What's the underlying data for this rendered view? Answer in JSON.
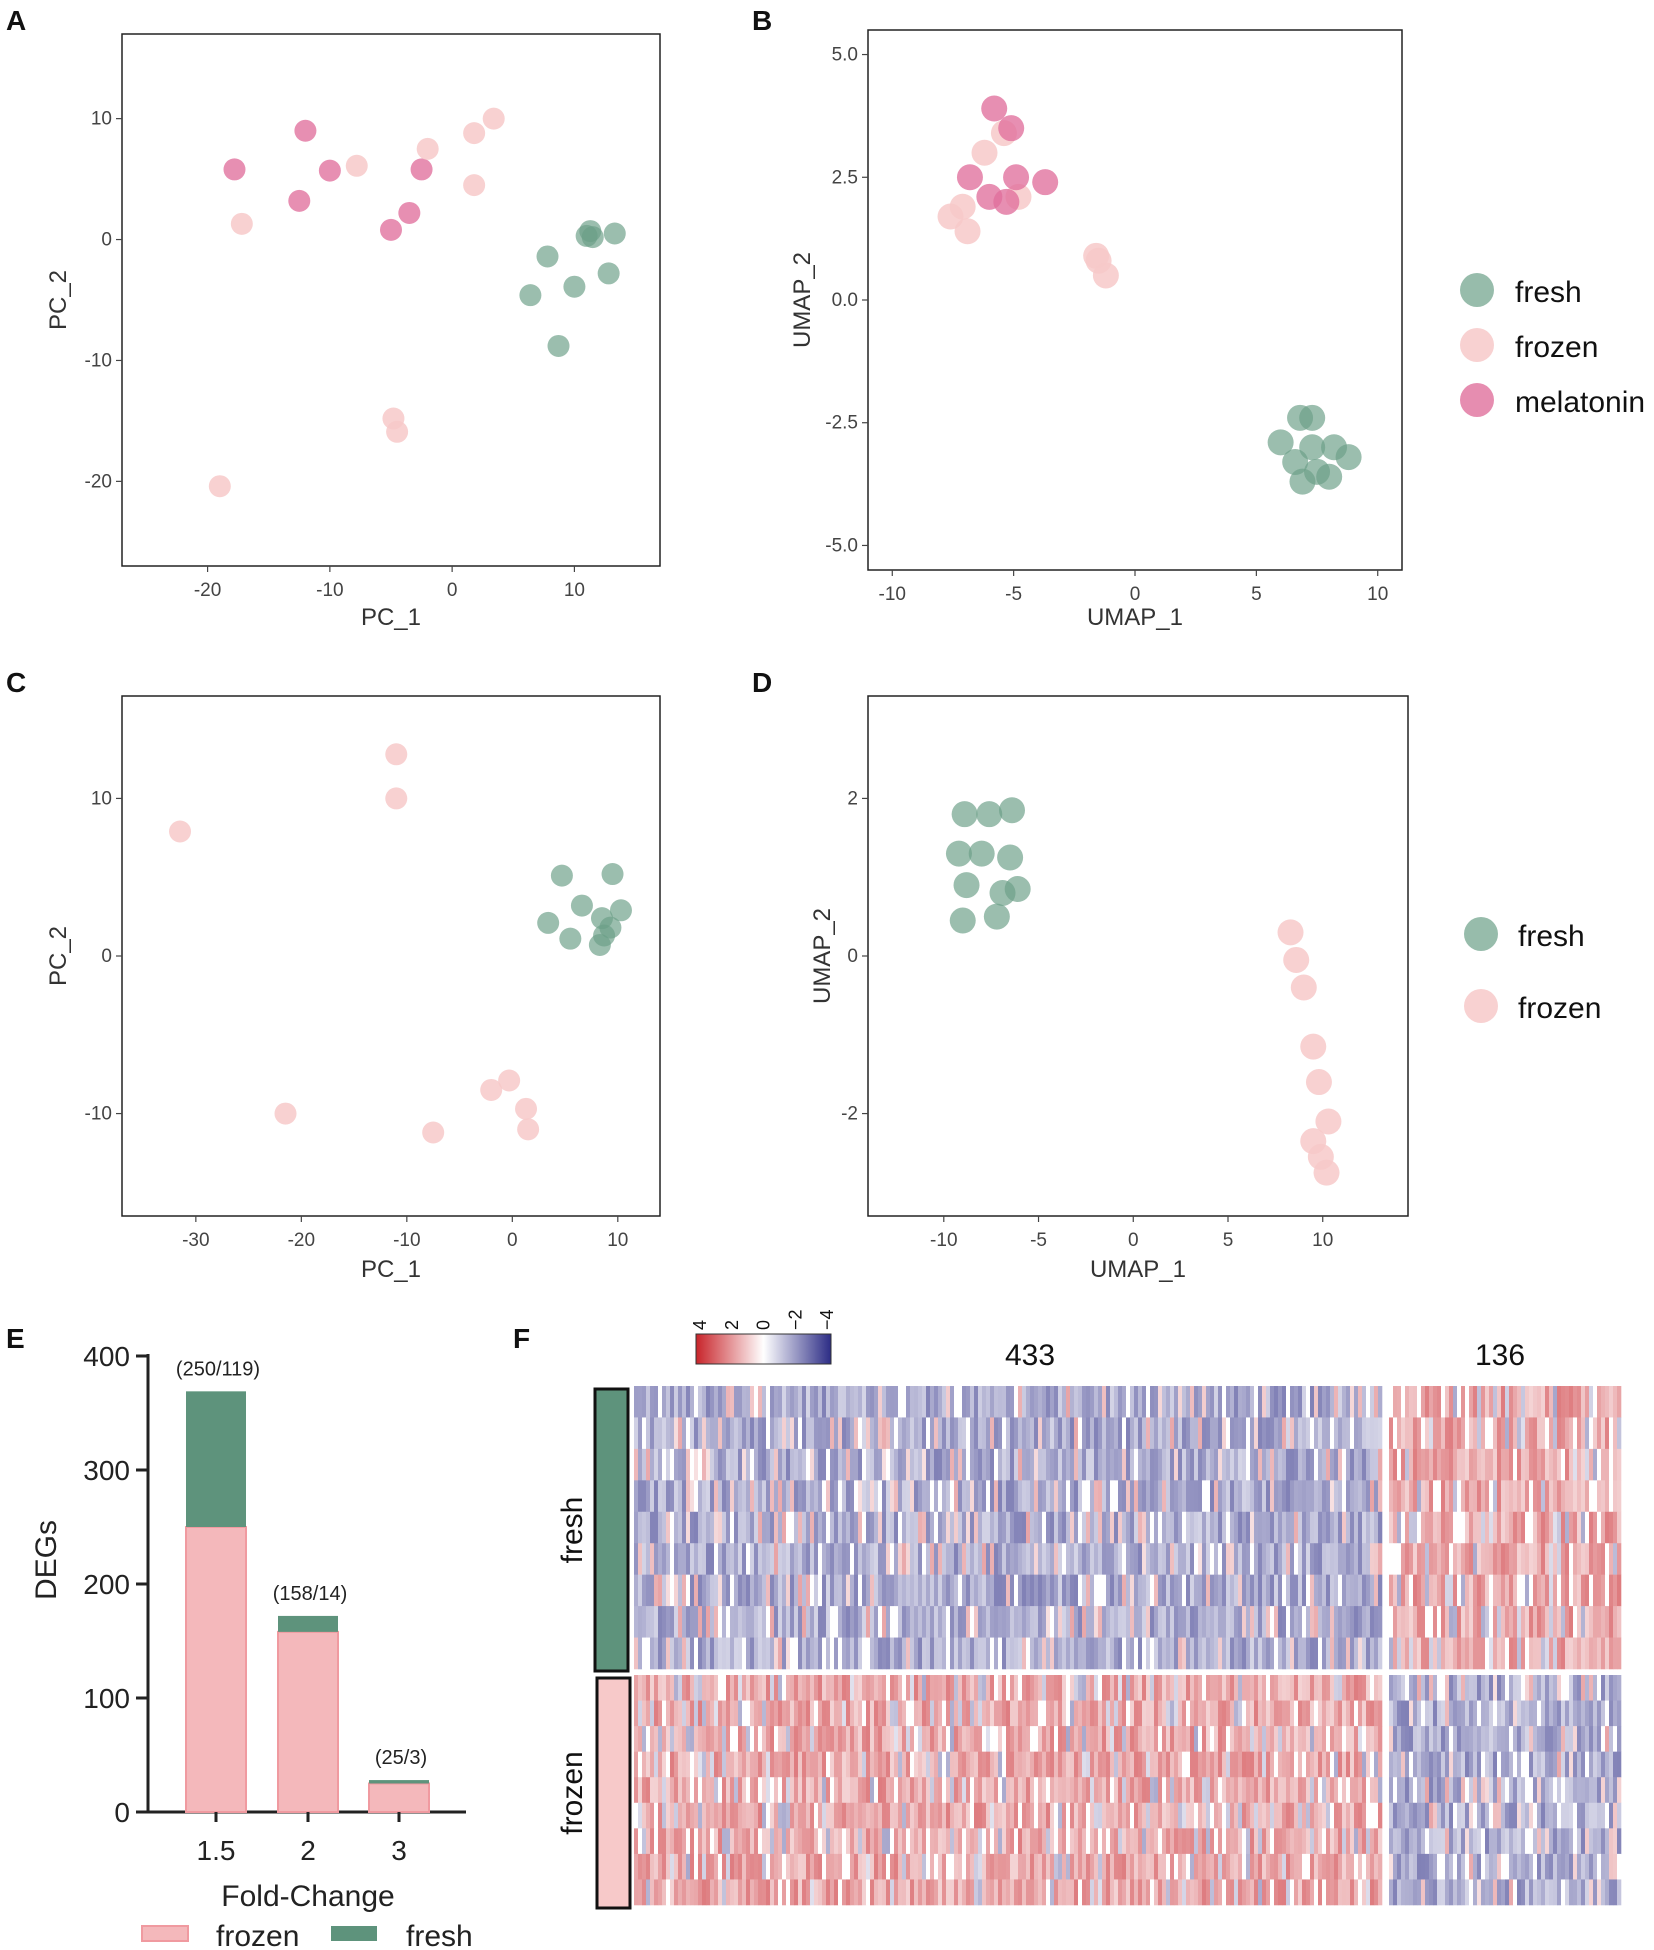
{
  "colors": {
    "fresh": "#6b9f88",
    "frozen": "#f7c9c9",
    "melatonin": "#e0709c",
    "bar_frozen": "#f4b8bb",
    "bar_frozen_edge": "#f09aa0",
    "bar_fresh": "#5e937c",
    "heat_high": "#c8242a",
    "heat_mid": "#ffffff",
    "heat_low": "#2c2c85"
  },
  "chart_data": [
    {
      "panel": "A",
      "type": "scatter",
      "xlabel": "PC_1",
      "ylabel": "PC_2",
      "xlim": [
        -27,
        17
      ],
      "ylim": [
        -27,
        17
      ],
      "xticks": [
        "-20",
        "-10",
        "0",
        "10"
      ],
      "xtick_values": [
        -20,
        -10,
        0,
        10
      ],
      "yticks": [
        "10",
        "0",
        "-10",
        "-20"
      ],
      "ytick_values": [
        10,
        0,
        -10,
        -20
      ],
      "series": [
        {
          "name": "melatonin",
          "x": [
            -17.8,
            -12,
            -10,
            -12.5,
            -2.5,
            -3.5,
            -5
          ],
          "y": [
            5.8,
            9,
            5.7,
            3.2,
            5.8,
            2.2,
            0.8
          ]
        },
        {
          "name": "frozen",
          "x": [
            -17.2,
            -7.8,
            -2,
            1.8,
            3.4,
            1.8,
            -4.8,
            -4.5,
            -19
          ],
          "y": [
            1.3,
            6.1,
            7.5,
            8.8,
            10,
            4.5,
            -14.8,
            -15.9,
            -20.4
          ]
        },
        {
          "name": "fresh",
          "x": [
            11,
            11.3,
            11.5,
            13.3,
            7.8,
            6.4,
            10,
            12.8,
            8.7
          ],
          "y": [
            0.3,
            0.7,
            0.2,
            0.5,
            -1.4,
            -4.6,
            -3.9,
            -2.8,
            -8.8
          ]
        }
      ]
    },
    {
      "panel": "B",
      "type": "scatter",
      "xlabel": "UMAP_1",
      "ylabel": "UMAP_2",
      "xlim": [
        -11,
        11
      ],
      "ylim": [
        -5.5,
        5.5
      ],
      "xticks": [
        "-10",
        "-5",
        "0",
        "5",
        "10"
      ],
      "xtick_values": [
        -10,
        -5,
        0,
        5,
        10
      ],
      "yticks": [
        "5.0",
        "2.5",
        "0.0",
        "-2.5",
        "-5.0"
      ],
      "ytick_values": [
        5,
        2.5,
        0,
        -2.5,
        -5
      ],
      "legend": [
        "fresh",
        "frozen",
        "melatonin"
      ],
      "series": [
        {
          "name": "frozen",
          "x": [
            -5.4,
            -6.2,
            -7.1,
            -7.6,
            -6.9,
            -4.8,
            -1.6,
            -1.5,
            -1.2
          ],
          "y": [
            3.4,
            3.0,
            1.9,
            1.7,
            1.4,
            2.1,
            0.9,
            0.8,
            0.5
          ]
        },
        {
          "name": "melatonin",
          "x": [
            -5.8,
            -5.1,
            -6.8,
            -4.9,
            -3.7,
            -6.0,
            -5.3
          ],
          "y": [
            3.9,
            3.5,
            2.5,
            2.5,
            2.4,
            2.1,
            2.0
          ]
        },
        {
          "name": "fresh",
          "x": [
            6.8,
            7.3,
            6.0,
            7.3,
            8.2,
            8.8,
            6.6,
            7.5,
            8.0,
            6.9
          ],
          "y": [
            -2.4,
            -2.4,
            -2.9,
            -3.0,
            -3.0,
            -3.2,
            -3.3,
            -3.5,
            -3.6,
            -3.7
          ]
        }
      ]
    },
    {
      "panel": "C",
      "type": "scatter",
      "xlabel": "PC_1",
      "ylabel": "PC_2",
      "xlim": [
        -37,
        14
      ],
      "ylim": [
        -16.5,
        16.5
      ],
      "xticks": [
        "-30",
        "-20",
        "-10",
        "0",
        "10"
      ],
      "xtick_values": [
        -30,
        -20,
        -10,
        0,
        10
      ],
      "yticks": [
        "10",
        "0",
        "-10"
      ],
      "ytick_values": [
        10,
        0,
        -10
      ],
      "series": [
        {
          "name": "frozen",
          "x": [
            -11,
            -11,
            -31.5,
            -21.5,
            -7.5,
            -2,
            -0.3,
            1.3,
            1.5
          ],
          "y": [
            12.8,
            10,
            7.9,
            -10,
            -11.2,
            -8.5,
            -7.9,
            -9.7,
            -11
          ]
        },
        {
          "name": "fresh",
          "x": [
            4.7,
            6.6,
            9.5,
            3.4,
            5.5,
            8.5,
            10.3,
            9.3,
            8.3,
            8.7
          ],
          "y": [
            5.1,
            3.2,
            5.2,
            2.1,
            1.1,
            2.4,
            2.9,
            1.8,
            0.7,
            1.3
          ]
        }
      ]
    },
    {
      "panel": "D",
      "type": "scatter",
      "xlabel": "UMAP_1",
      "ylabel": "UMAP_2",
      "xlim": [
        -14,
        14.5
      ],
      "ylim": [
        -3.3,
        3.3
      ],
      "xticks": [
        "-10",
        "-5",
        "0",
        "5",
        "10"
      ],
      "xtick_values": [
        -10,
        -5,
        0,
        5,
        10
      ],
      "yticks": [
        "2",
        "0",
        "-2"
      ],
      "ytick_values": [
        2,
        0,
        -2
      ],
      "legend": [
        "fresh",
        "frozen"
      ],
      "series": [
        {
          "name": "fresh",
          "x": [
            -8.9,
            -7.6,
            -6.4,
            -9.2,
            -8.0,
            -6.5,
            -8.8,
            -6.9,
            -6.1,
            -9.0,
            -7.2
          ],
          "y": [
            1.8,
            1.8,
            1.85,
            1.3,
            1.3,
            1.25,
            0.9,
            0.8,
            0.85,
            0.45,
            0.5
          ]
        },
        {
          "name": "frozen",
          "x": [
            8.3,
            8.6,
            9.0,
            9.5,
            9.8,
            10.3,
            9.5,
            9.9,
            10.2
          ],
          "y": [
            0.3,
            -0.05,
            -0.4,
            -1.15,
            -1.6,
            -2.1,
            -2.35,
            -2.55,
            -2.75
          ]
        }
      ]
    },
    {
      "panel": "E",
      "type": "bar",
      "stacked": true,
      "xlabel": "Fold-Change",
      "ylabel": "DEGs",
      "categories": [
        "1.5",
        "2",
        "3"
      ],
      "ylim": [
        0,
        400
      ],
      "yticks": [
        "0",
        "100",
        "200",
        "300",
        "400"
      ],
      "ytick_values": [
        0,
        100,
        200,
        300,
        400
      ],
      "series": [
        {
          "name": "frozen",
          "values": [
            250,
            158,
            25
          ]
        },
        {
          "name": "fresh",
          "values": [
            119,
            14,
            3
          ]
        }
      ],
      "annotations": [
        "(250/119)",
        "(158/14)",
        "(25/3)"
      ],
      "legend": [
        "frozen",
        "fresh"
      ]
    },
    {
      "panel": "F",
      "type": "heatmap",
      "column_clusters": [
        "433",
        "136"
      ],
      "row_groups": [
        "fresh",
        "frozen"
      ],
      "colorbar_ticks": [
        "4",
        "2",
        "0",
        "−2",
        "−4"
      ],
      "colorbar_range": [
        4,
        -4
      ],
      "pattern": {
        "fresh_in_433": "low",
        "fresh_in_136": "high",
        "frozen_in_433": "high",
        "frozen_in_136": "low"
      }
    }
  ]
}
